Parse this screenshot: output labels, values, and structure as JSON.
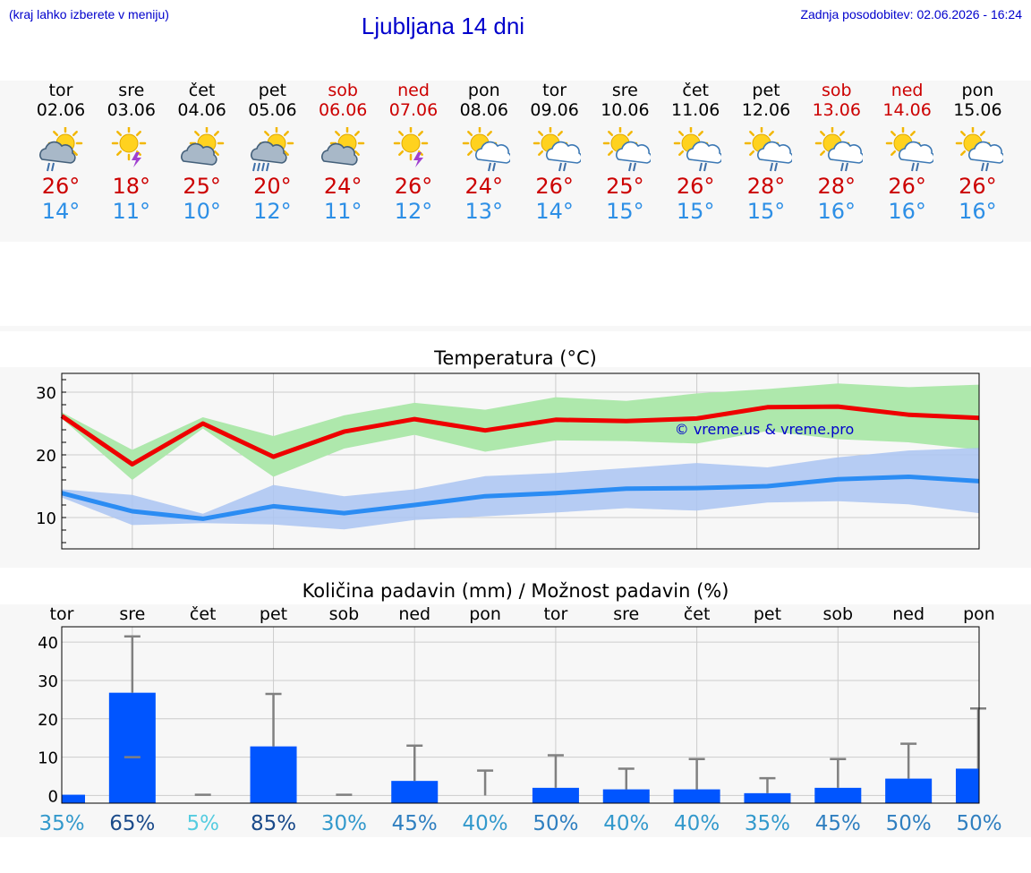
{
  "header": {
    "left_note": "(kraj lahko izberete v meniju)",
    "title": "Ljubljana 14 dni",
    "updated": "Zadnja posodobitev: 02.06.2026 - 16:24"
  },
  "colors": {
    "max_temp": "#cc0000",
    "min_temp": "#2d8fe6",
    "header_text": "#0000cc",
    "temp_max_line": "#ee0000",
    "temp_max_band": "#aee8ac",
    "temp_min_line": "#2b8cf3",
    "temp_min_band": "#aac4f2",
    "precip_bar": "#0055ff",
    "error_bar": "#808080"
  },
  "days": [
    {
      "name": "tor",
      "date": "02.06",
      "weekend": false,
      "icon": "partly-cloudy-rain-icon",
      "max": "26°",
      "min": "14°"
    },
    {
      "name": "sre",
      "date": "03.06",
      "weekend": false,
      "icon": "sun-thunderstorm-icon",
      "max": "18°",
      "min": "11°"
    },
    {
      "name": "čet",
      "date": "04.06",
      "weekend": false,
      "icon": "partly-cloudy-icon",
      "max": "25°",
      "min": "10°"
    },
    {
      "name": "pet",
      "date": "05.06",
      "weekend": false,
      "icon": "partly-cloudy-heavy-rain-icon",
      "max": "20°",
      "min": "12°"
    },
    {
      "name": "sob",
      "date": "06.06",
      "weekend": true,
      "icon": "partly-cloudy-icon",
      "max": "24°",
      "min": "11°"
    },
    {
      "name": "ned",
      "date": "07.06",
      "weekend": true,
      "icon": "sun-thunderstorm-icon",
      "max": "26°",
      "min": "12°"
    },
    {
      "name": "pon",
      "date": "08.06",
      "weekend": false,
      "icon": "sun-cloud-rain-icon",
      "max": "24°",
      "min": "13°"
    },
    {
      "name": "tor",
      "date": "09.06",
      "weekend": false,
      "icon": "sun-cloud-rain-icon",
      "max": "26°",
      "min": "14°"
    },
    {
      "name": "sre",
      "date": "10.06",
      "weekend": false,
      "icon": "sun-cloud-rain-icon",
      "max": "25°",
      "min": "15°"
    },
    {
      "name": "čet",
      "date": "11.06",
      "weekend": false,
      "icon": "sun-cloud-rain-icon",
      "max": "26°",
      "min": "15°"
    },
    {
      "name": "pet",
      "date": "12.06",
      "weekend": false,
      "icon": "sun-cloud-rain-icon",
      "max": "28°",
      "min": "15°"
    },
    {
      "name": "sob",
      "date": "13.06",
      "weekend": true,
      "icon": "sun-cloud-rain-icon",
      "max": "28°",
      "min": "16°"
    },
    {
      "name": "ned",
      "date": "14.06",
      "weekend": true,
      "icon": "sun-cloud-rain-icon",
      "max": "26°",
      "min": "16°"
    },
    {
      "name": "pon",
      "date": "15.06",
      "weekend": false,
      "icon": "sun-cloud-rain-icon",
      "max": "26°",
      "min": "16°"
    }
  ],
  "chart_data": [
    {
      "type": "line",
      "title": "Temperatura (°C)",
      "watermark": "© vreme.us & vreme.pro",
      "x": [
        "02.06",
        "03.06",
        "04.06",
        "05.06",
        "06.06",
        "07.06",
        "08.06",
        "09.06",
        "10.06",
        "11.06",
        "12.06",
        "13.06",
        "14.06",
        "15.06"
      ],
      "ylim": [
        5,
        33
      ],
      "yticks": [
        10,
        20,
        30
      ],
      "grid": true,
      "series": [
        {
          "values": [
            26.2,
            18.5,
            25.0,
            19.7,
            23.7,
            25.7,
            23.9,
            25.6,
            25.4,
            25.8,
            27.6,
            27.7,
            26.4,
            25.9
          ],
          "band_low": [
            25.8,
            16.0,
            24.2,
            16.5,
            21.0,
            23.2,
            20.5,
            22.3,
            22.2,
            21.8,
            23.8,
            22.5,
            22.0,
            20.8
          ],
          "band_high": [
            26.8,
            20.8,
            26.0,
            23.0,
            26.3,
            28.3,
            27.2,
            29.2,
            28.6,
            29.8,
            30.5,
            31.4,
            30.8,
            31.2
          ]
        },
        {
          "values": [
            13.9,
            11.0,
            9.8,
            11.8,
            10.7,
            12.0,
            13.4,
            13.9,
            14.6,
            14.7,
            15.0,
            16.1,
            16.5,
            15.8
          ],
          "band_low": [
            13.2,
            8.8,
            9.1,
            8.9,
            8.1,
            9.6,
            10.2,
            10.8,
            11.5,
            11.1,
            12.4,
            12.6,
            12.1,
            10.7
          ],
          "band_high": [
            14.5,
            13.6,
            10.6,
            15.2,
            13.4,
            14.5,
            16.6,
            17.1,
            17.9,
            18.7,
            18.0,
            19.6,
            20.7,
            21.1
          ]
        }
      ]
    },
    {
      "type": "bar",
      "title": "Količina padavin (mm) / Možnost padavin (%)",
      "categories": [
        "tor",
        "sre",
        "čet",
        "pet",
        "sob",
        "ned",
        "pon",
        "tor",
        "sre",
        "čet",
        "pet",
        "sob",
        "ned",
        "pon"
      ],
      "values": [
        0.2,
        26.8,
        0,
        12.8,
        0,
        3.8,
        0,
        2.0,
        1.6,
        1.6,
        0.6,
        2.0,
        4.4,
        7.0
      ],
      "error_high": [
        0,
        41.5,
        0.2,
        26.5,
        0.2,
        13.0,
        6.5,
        10.5,
        7.0,
        9.5,
        4.5,
        9.5,
        13.5,
        22.7
      ],
      "error_low": [
        0,
        10,
        0,
        0,
        0,
        0,
        0,
        0,
        0,
        0,
        0,
        0,
        0,
        0
      ],
      "probability": [
        "35%",
        "65%",
        "5%",
        "85%",
        "30%",
        "45%",
        "40%",
        "50%",
        "40%",
        "40%",
        "35%",
        "45%",
        "50%",
        "50%"
      ],
      "probability_colors": [
        "#3399cc",
        "#1a4a8a",
        "#55cce0",
        "#1a4a8a",
        "#3399cc",
        "#2f7fc0",
        "#3399cc",
        "#2f7fc0",
        "#3399cc",
        "#3399cc",
        "#3399cc",
        "#2f7fc0",
        "#2f7fc0",
        "#2f7fc0"
      ],
      "ylim": [
        -2,
        44
      ],
      "yticks": [
        0,
        10,
        20,
        30,
        40
      ],
      "grid": true
    }
  ]
}
